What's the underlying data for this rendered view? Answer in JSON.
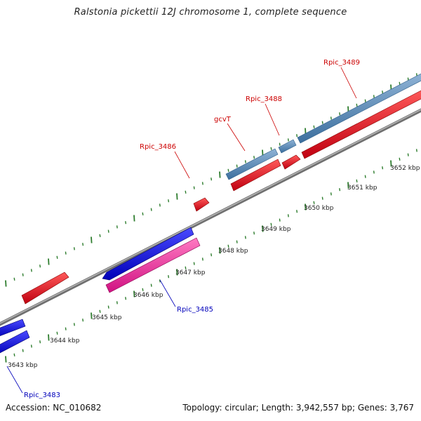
{
  "title": "Ralstonia pickettii 12J chromosome 1, complete sequence",
  "footer": {
    "accession": "Accession: NC_010682",
    "stats": "Topology: circular; Length: 3,942,557 bp; Genes: 3,767"
  },
  "colors": {
    "backbone": "#8f8f8f",
    "tick": "#2e7d2e",
    "gene_forward": "#e8001a",
    "gene_reverse": "#0a0aee",
    "gene_forward_outer": "#4f87b8",
    "gene_reverse_inner": "#ee2a9e",
    "label_forward": "#cc0000",
    "label_reverse": "#0000bb"
  },
  "scale_labels": [
    "3643 kbp",
    "3644 kbp",
    "3645 kbp",
    "3646 kbp",
    "3647 kbp",
    "3648 kbp",
    "3649 kbp",
    "3650 kbp",
    "3651 kbp",
    "3652 kbp"
  ],
  "gene_labels": [
    {
      "name": "Rpic_3489",
      "strand": "forward"
    },
    {
      "name": "Rpic_3488",
      "strand": "forward"
    },
    {
      "name": "gcvT",
      "strand": "forward"
    },
    {
      "name": "Rpic_3486",
      "strand": "forward"
    },
    {
      "name": "Rpic_3485",
      "strand": "reverse"
    },
    {
      "name": "Rpic_3483",
      "strand": "reverse"
    }
  ]
}
